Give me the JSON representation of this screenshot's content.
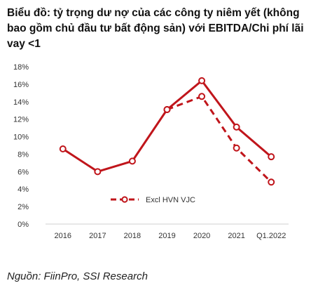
{
  "title": "Biểu đồ: tỷ trọng dư nợ của các công ty niêm yết (không bao gồm chủ đầu tư bất động sản) với EBITDA/Chi phí lãi vay <1",
  "source": "Nguồn: FiinPro, SSI Research",
  "chart_data": {
    "type": "line",
    "categories": [
      "2016",
      "2017",
      "2018",
      "2019",
      "2020",
      "2021",
      "Q1.2022"
    ],
    "series": [
      {
        "name": "",
        "values": [
          8.6,
          6.0,
          7.2,
          13.1,
          16.4,
          11.1,
          7.7
        ],
        "color": "#c0151b",
        "style": "solid"
      },
      {
        "name": "Excl HVN VJC",
        "values": [
          null,
          null,
          null,
          13.1,
          14.6,
          8.7,
          4.8
        ],
        "color": "#c0151b",
        "style": "dashed"
      }
    ],
    "yticks": [
      "0%",
      "2%",
      "4%",
      "6%",
      "8%",
      "10%",
      "12%",
      "14%",
      "16%",
      "18%"
    ],
    "ylim": [
      0,
      18
    ],
    "grid": false,
    "legend_position": "center"
  }
}
